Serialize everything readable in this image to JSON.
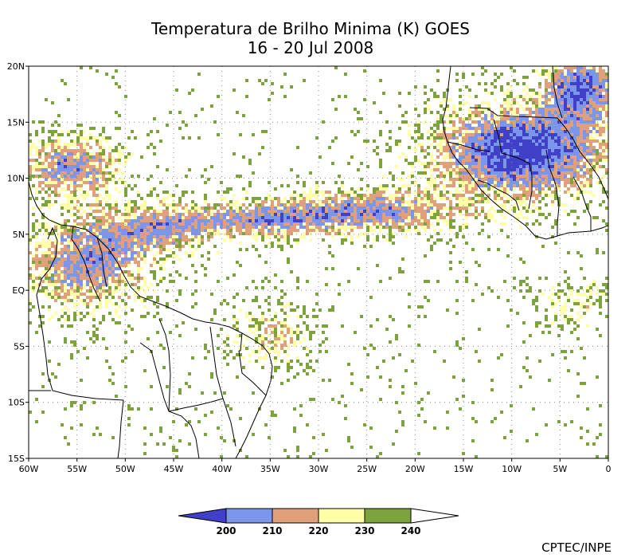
{
  "title_line1": "Temperatura de Brilho Minima (K) GOES",
  "title_line2": "16 - 20 Jul 2008",
  "credit": "CPTEC/INPE",
  "map": {
    "lon_range": [
      -60,
      0
    ],
    "lat_range": [
      -15,
      20
    ],
    "lon_ticks": [
      {
        "value": -60,
        "label": "60W"
      },
      {
        "value": -55,
        "label": "55W"
      },
      {
        "value": -50,
        "label": "50W"
      },
      {
        "value": -45,
        "label": "45W"
      },
      {
        "value": -40,
        "label": "40W"
      },
      {
        "value": -35,
        "label": "35W"
      },
      {
        "value": -30,
        "label": "30W"
      },
      {
        "value": -25,
        "label": "25W"
      },
      {
        "value": -20,
        "label": "20W"
      },
      {
        "value": -15,
        "label": "15W"
      },
      {
        "value": -10,
        "label": "10W"
      },
      {
        "value": -5,
        "label": "5W"
      },
      {
        "value": 0,
        "label": "0"
      }
    ],
    "lat_ticks": [
      {
        "value": 20,
        "label": "20N"
      },
      {
        "value": 15,
        "label": "15N"
      },
      {
        "value": 10,
        "label": "10N"
      },
      {
        "value": 5,
        "label": "5N"
      },
      {
        "value": 0,
        "label": "EQ"
      },
      {
        "value": -5,
        "label": "5S"
      },
      {
        "value": -10,
        "label": "10S"
      },
      {
        "value": -15,
        "label": "15S"
      }
    ],
    "grid": "dotted"
  },
  "colorbar": {
    "labels": [
      "200",
      "210",
      "220",
      "230",
      "240"
    ],
    "colors": {
      "below_200": "#4040c8",
      "200_210": "#7c96ec",
      "210_220": "#e0a07c",
      "220_230": "#ffffa8",
      "230_240": "#7ea23c",
      "above_240": "#ffffff"
    }
  },
  "field_colors": {
    "coldest": "#4040c8",
    "cold": "#7c96ec",
    "mid": "#e0a07c",
    "warm": "#ffffa8",
    "warmest": "#7ea23c"
  }
}
